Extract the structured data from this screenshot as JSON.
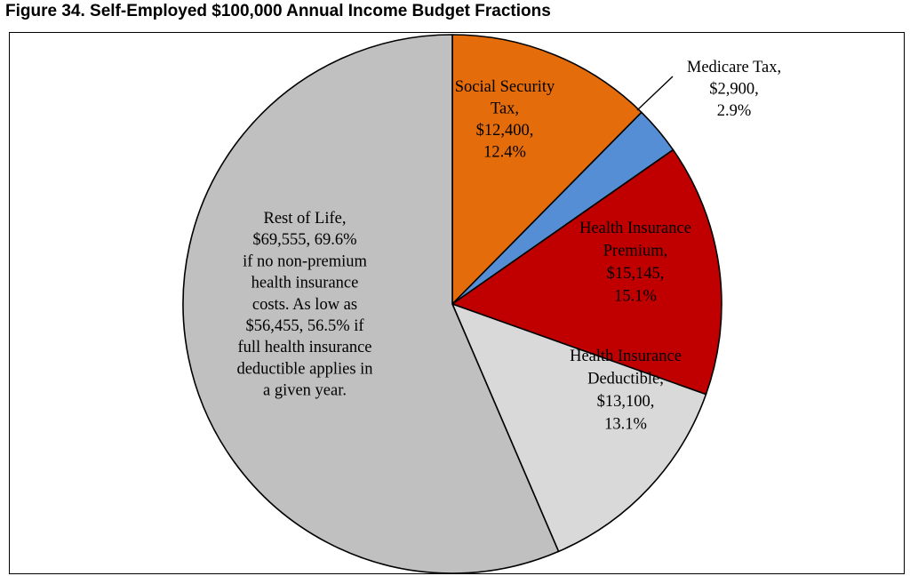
{
  "figure_title": "Figure 34.  Self-Employed $100,000 Annual Income Budget Fractions",
  "chart_data": {
    "type": "pie",
    "title": "Figure 34.  Self-Employed $100,000 Annual Income Budget Fractions",
    "slices": [
      {
        "name": "Social Security Tax",
        "value": 12400,
        "percent": 12.4,
        "color": "#e46c0a",
        "label_lines": [
          "Social Security",
          "Tax,",
          "$12,400,",
          "12.4%"
        ]
      },
      {
        "name": "Medicare Tax",
        "value": 2900,
        "percent": 2.9,
        "color": "#558ed5",
        "label_lines": [
          "Medicare Tax,",
          "$2,900,",
          "2.9%"
        ]
      },
      {
        "name": "Health Insurance Premium",
        "value": 15145,
        "percent": 15.1,
        "color": "#c00000",
        "label_lines": [
          "Health Insurance",
          "Premium,",
          "$15,145,",
          "15.1%"
        ]
      },
      {
        "name": "Health Insurance Deductible",
        "value": 13100,
        "percent": 13.1,
        "color": "#d9d9d9",
        "label_lines": [
          "Health Insurance",
          "Deductible,",
          "$13,100,",
          "13.1%"
        ]
      },
      {
        "name": "Rest of Life",
        "value": 56455,
        "percent": 56.5,
        "color": "#c0c0c0",
        "label_lines": [
          "Rest of Life,",
          "$69,555, 69.6%",
          "if no non-premium",
          "health insurance",
          "costs.  As low as",
          "$56,455, 56.5% if",
          "full health insurance",
          "deductible applies in",
          "a given year."
        ]
      }
    ],
    "start_angle": "12 o'clock",
    "direction": "clockwise",
    "legend": "none"
  }
}
